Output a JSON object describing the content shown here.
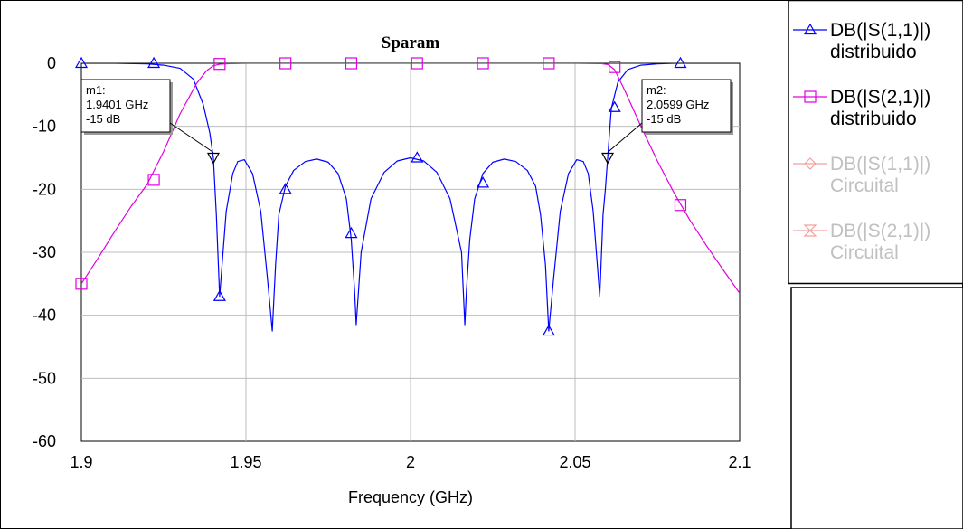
{
  "chart_data": {
    "type": "line",
    "title": "Sparam",
    "xlabel": "Frequency (GHz)",
    "ylabel": "",
    "xlim": [
      1.9,
      2.1
    ],
    "ylim": [
      -60,
      0
    ],
    "x_ticks": [
      "1.9",
      "1.95",
      "2",
      "2.05",
      "2.1"
    ],
    "y_ticks": [
      "0",
      "-10",
      "-20",
      "-30",
      "-40",
      "-50",
      "-60"
    ],
    "grid": true,
    "legend_position": "right",
    "series": [
      {
        "name": "DB(|S(1,1)|)",
        "subname": "distribuido",
        "color": "#0000ff",
        "marker": "triangle",
        "dimmed": false,
        "x": [
          1.9,
          1.91,
          1.92,
          1.925,
          1.93,
          1.934,
          1.937,
          1.939,
          1.9401,
          1.941,
          1.942,
          1.944,
          1.946,
          1.9475,
          1.9495,
          1.952,
          1.9545,
          1.9565,
          1.958,
          1.959,
          1.96,
          1.962,
          1.9645,
          1.968,
          1.9715,
          1.975,
          1.978,
          1.9805,
          1.982,
          1.983,
          1.9835,
          1.985,
          1.988,
          1.992,
          1.996,
          2.0,
          2.004,
          2.008,
          2.012,
          2.0155,
          2.0165,
          2.017,
          2.018,
          2.0195,
          2.022,
          2.025,
          2.0285,
          2.032,
          2.0355,
          2.038,
          2.0395,
          2.041,
          2.042,
          2.0435,
          2.0455,
          2.048,
          2.0505,
          2.0525,
          2.054,
          2.0555,
          2.0575,
          2.0585,
          2.0592,
          2.0599,
          2.061,
          2.063,
          2.066,
          2.07,
          2.075,
          2.08,
          2.09,
          2.1
        ],
        "y": [
          0,
          0,
          -0.1,
          -0.3,
          -0.8,
          -2.5,
          -6.5,
          -11.0,
          -15.0,
          -24.0,
          -37.0,
          -23.5,
          -17.5,
          -15.6,
          -15.3,
          -17.5,
          -23.5,
          -34.0,
          -42.5,
          -32.0,
          -24.0,
          -19.5,
          -17.0,
          -15.6,
          -15.2,
          -15.7,
          -17.5,
          -21.5,
          -28.0,
          -36.0,
          -41.5,
          -30.0,
          -21.5,
          -17.3,
          -15.5,
          -15.0,
          -15.5,
          -17.3,
          -21.5,
          -30.0,
          -41.5,
          -36.0,
          -28.0,
          -21.5,
          -17.5,
          -15.7,
          -15.2,
          -15.6,
          -17.0,
          -19.5,
          -24.0,
          -32.0,
          -42.5,
          -34.0,
          -23.5,
          -17.5,
          -15.3,
          -15.6,
          -17.5,
          -23.5,
          -37.0,
          -24.0,
          -20.0,
          -15.0,
          -7.2,
          -3.0,
          -1.0,
          -0.3,
          -0.1,
          0,
          0,
          0
        ],
        "markers_x": [
          1.9,
          1.922,
          1.942,
          1.962,
          1.982,
          2.002,
          2.022,
          2.042,
          2.062,
          2.082
        ],
        "markers_y": [
          0,
          0,
          -37,
          -20,
          -27,
          -15,
          -19,
          -42.5,
          -7,
          0
        ]
      },
      {
        "name": "DB(|S(2,1)|)",
        "subname": "distribuido",
        "color": "#e000e0",
        "marker": "square",
        "dimmed": false,
        "x": [
          1.9,
          1.905,
          1.91,
          1.915,
          1.92,
          1.925,
          1.93,
          1.935,
          1.938,
          1.94,
          1.942,
          1.945,
          1.95,
          2.0,
          2.05,
          2.058,
          2.06,
          2.062,
          2.065,
          2.07,
          2.075,
          2.08,
          2.085,
          2.09,
          2.095,
          2.1
        ],
        "y": [
          -35.0,
          -31.0,
          -26.8,
          -22.8,
          -19.2,
          -14.0,
          -8.0,
          -3.2,
          -1.2,
          -0.4,
          -0.15,
          -0.05,
          0,
          0,
          0,
          -0.05,
          -0.2,
          -1.0,
          -4.2,
          -10.0,
          -15.5,
          -20.5,
          -25.0,
          -29.0,
          -32.8,
          -36.5
        ],
        "markers_x": [
          1.9,
          1.922,
          1.942,
          1.962,
          1.982,
          2.002,
          2.022,
          2.042,
          2.062,
          2.082
        ],
        "markers_y": [
          -35,
          -18.5,
          -0.1,
          0,
          0,
          0,
          0,
          0,
          -0.6,
          -22.5
        ]
      },
      {
        "name": "DB(|S(1,1)|)",
        "subname": "Circuital",
        "color": "#f0a0a0",
        "marker": "diamond",
        "dimmed": true,
        "x": [],
        "y": []
      },
      {
        "name": "DB(|S(2,1)|)",
        "subname": "Circuital",
        "color": "#f0a0a0",
        "marker": "hourglass",
        "dimmed": true,
        "x": [],
        "y": []
      }
    ],
    "annotations": [
      {
        "id": "m1",
        "lines": [
          "m1:",
          "1.9401 GHz",
          "-15 dB"
        ],
        "x": 1.9401,
        "y": -15,
        "box_side": "left"
      },
      {
        "id": "m2",
        "lines": [
          "m2:",
          "2.0599 GHz",
          "-15 dB"
        ],
        "x": 2.0599,
        "y": -15,
        "box_side": "right"
      }
    ]
  }
}
